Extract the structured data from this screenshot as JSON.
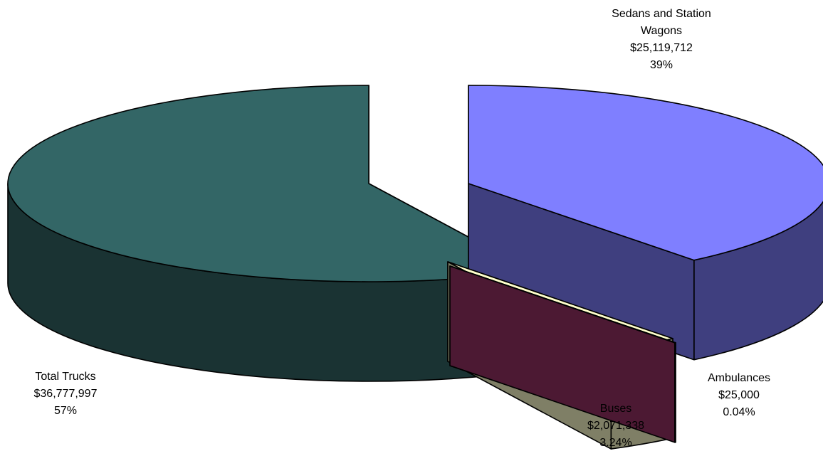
{
  "chart_data": {
    "type": "pie",
    "three_d": true,
    "exploded": true,
    "legend": "none",
    "slices": [
      {
        "label_lines": [
          "Sedans and Station",
          "Wagons"
        ],
        "value_text": "$25,119,712",
        "value": 25119712,
        "percent_text": "39%",
        "percent": 39,
        "color": "#7f7fff",
        "side_color": "#3f3f7f"
      },
      {
        "label_lines": [
          "Ambulances"
        ],
        "value_text": "$25,000",
        "value": 25000,
        "percent_text": "0.04%",
        "percent": 0.04,
        "color": "#993366",
        "side_color": "#4c1933"
      },
      {
        "label_lines": [
          "Buses"
        ],
        "value_text": "$2,071,338",
        "value": 2071338,
        "percent_text": "3.24%",
        "percent": 3.24,
        "color": "#ffffcc",
        "side_color": "#7f7f66"
      },
      {
        "label_lines": [
          "Total Trucks"
        ],
        "value_text": "$36,777,997",
        "value": 36777997,
        "percent_text": "57%",
        "percent": 57,
        "color": "#336666",
        "side_color": "#1a3333"
      }
    ]
  }
}
